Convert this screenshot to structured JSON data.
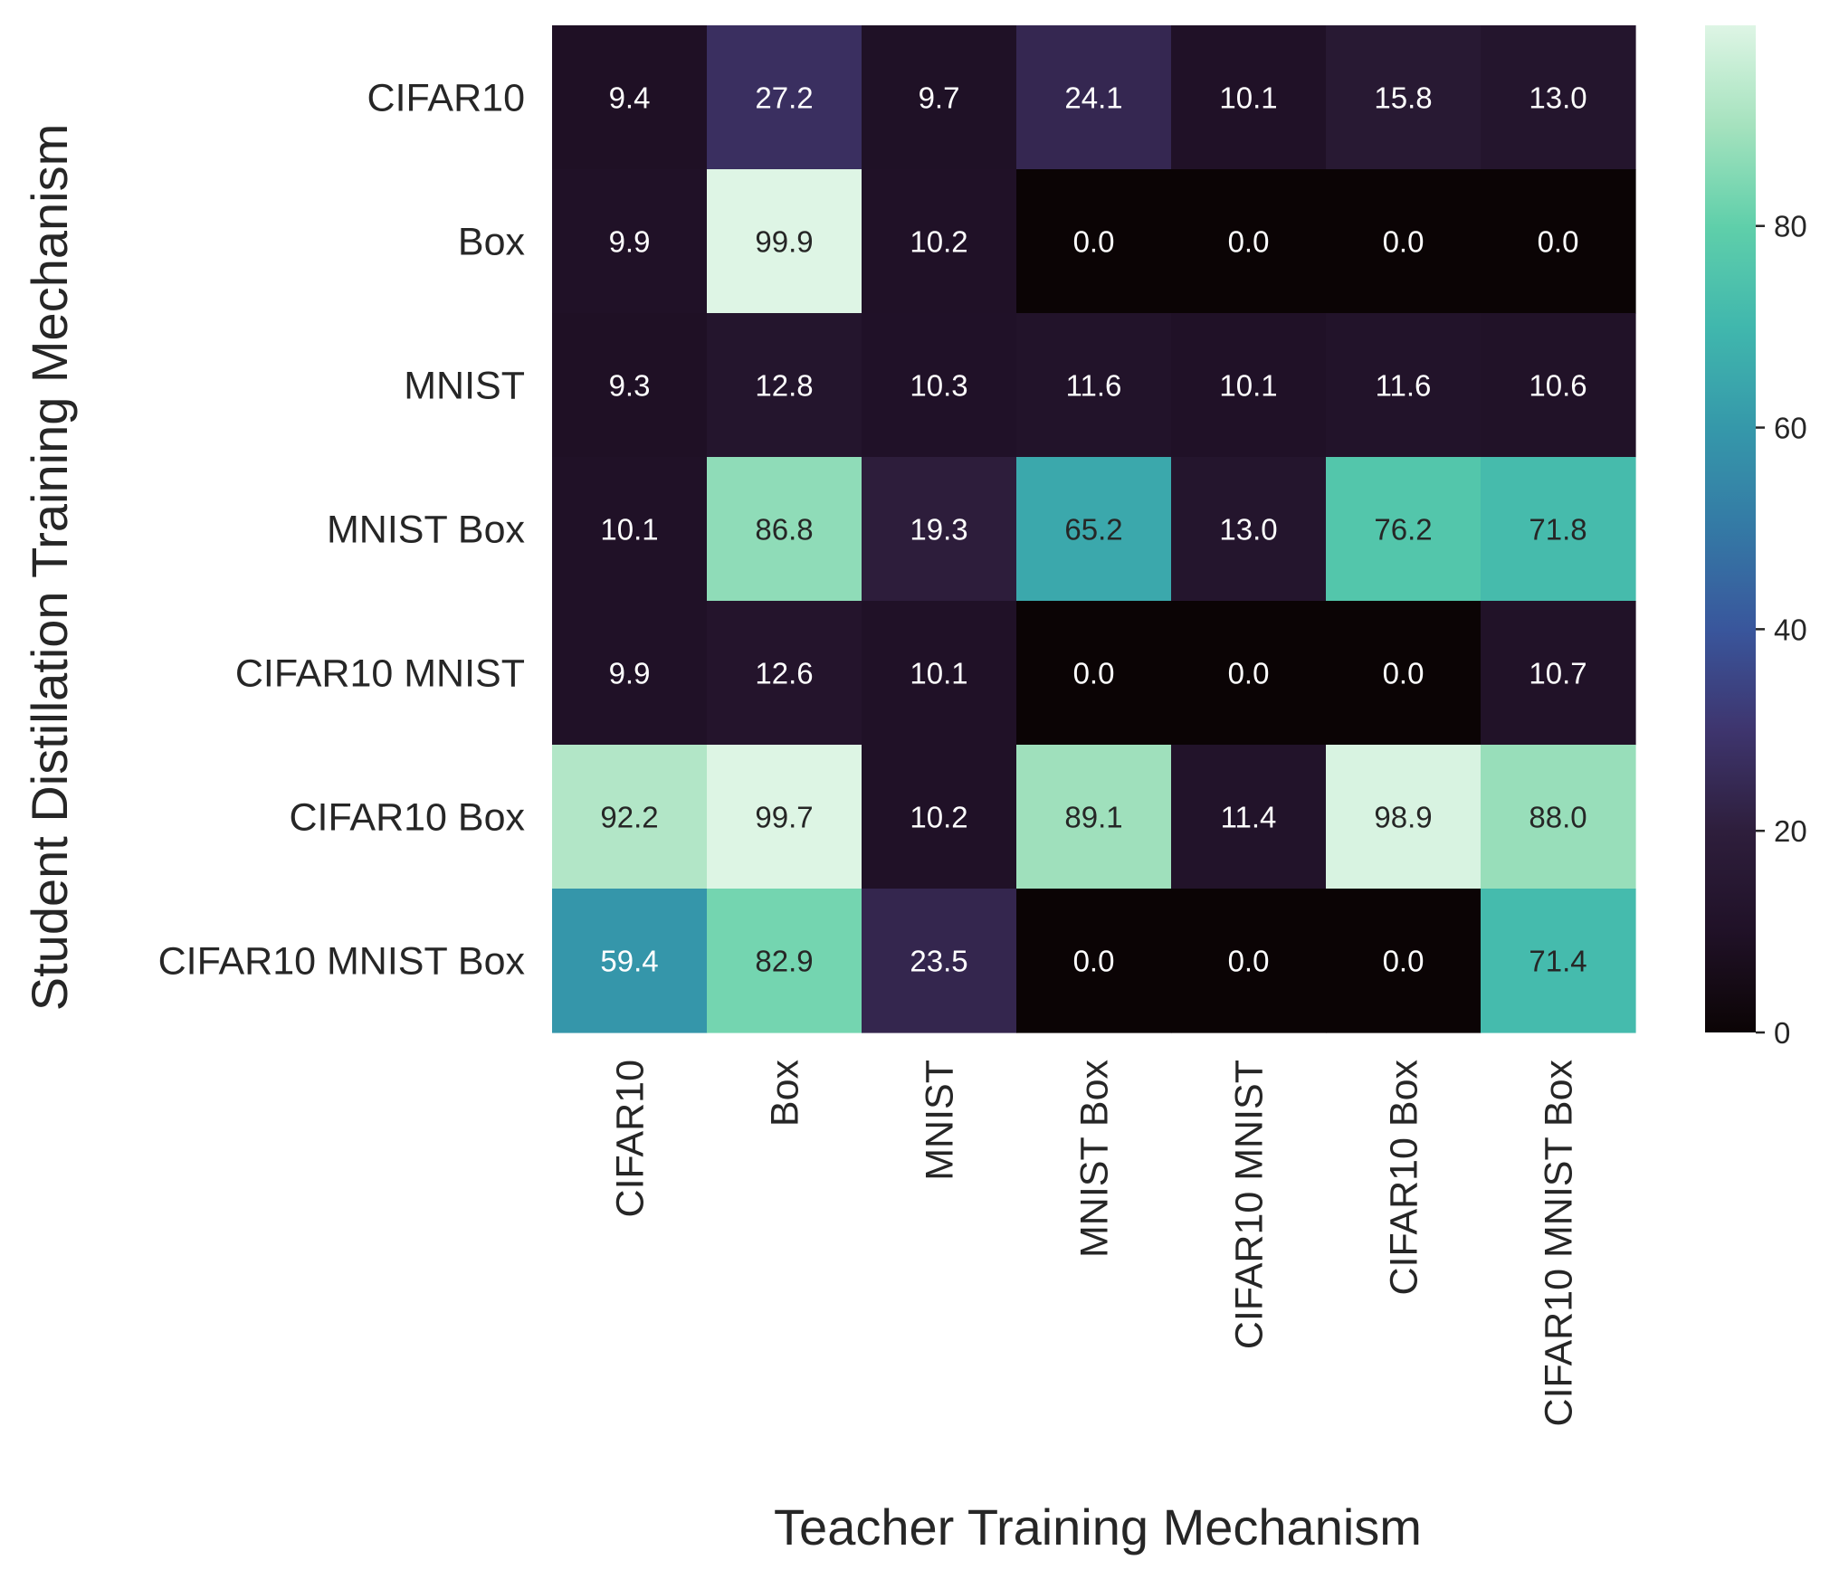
{
  "chart_data": {
    "type": "heatmap",
    "xlabel": "Teacher Training Mechanism",
    "ylabel": "Student Distillation Training Mechanism",
    "x_categories": [
      "CIFAR10",
      "Box",
      "MNIST",
      "MNIST Box",
      "CIFAR10 MNIST",
      "CIFAR10 Box",
      "CIFAR10 MNIST Box"
    ],
    "y_categories": [
      "CIFAR10",
      "Box",
      "MNIST",
      "MNIST Box",
      "CIFAR10 MNIST",
      "CIFAR10 Box",
      "CIFAR10 MNIST Box"
    ],
    "values": [
      [
        9.4,
        27.2,
        9.7,
        24.1,
        10.1,
        15.8,
        13.0
      ],
      [
        9.9,
        99.9,
        10.2,
        0.0,
        0.0,
        0.0,
        0.0
      ],
      [
        9.3,
        12.8,
        10.3,
        11.6,
        10.1,
        11.6,
        10.6
      ],
      [
        10.1,
        86.8,
        19.3,
        65.2,
        13.0,
        76.2,
        71.8
      ],
      [
        9.9,
        12.6,
        10.1,
        0.0,
        0.0,
        0.0,
        10.7
      ],
      [
        92.2,
        99.7,
        10.2,
        89.1,
        11.4,
        98.9,
        88.0
      ],
      [
        59.4,
        82.9,
        23.5,
        0.0,
        0.0,
        0.0,
        71.4
      ]
    ],
    "value_format": "0.0",
    "colormap": "mako",
    "vmin": 0,
    "vmax": 99.9,
    "colorbar_ticks": [
      0,
      20,
      40,
      60,
      80
    ],
    "grid": false,
    "colorbar_placement": "right"
  }
}
